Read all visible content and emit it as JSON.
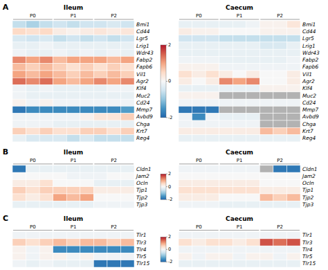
{
  "chart_data": [
    {
      "type": "heatmap",
      "title": "A",
      "rows": [
        "Bmi1",
        "Cd44",
        "Lgr5",
        "Lrig1",
        "Wdr43",
        "Fabp2",
        "Fapb6",
        "Vil1",
        "Agr2",
        "Klf4",
        "Muc2",
        "Cd24",
        "Mmp7",
        "Avbd9",
        "Chga",
        "Krt7",
        "Reg4"
      ],
      "groups": [
        "P0",
        "P1",
        "P2"
      ],
      "group_size": 3,
      "colormap": [
        "#2166ac",
        "#4393c3",
        "#92c5de",
        "#d1e5f0",
        "#f7f7f7",
        "#fddbc7",
        "#f4a582",
        "#d6604d",
        "#b2182b"
      ],
      "missing_color": "#b2b2b2",
      "colorbar": {
        "range": [
          -2,
          2
        ],
        "ticks": [
          -2,
          0,
          2
        ]
      },
      "heatmaps": [
        {
          "title": "Ileum",
          "values": [
            [
              -0.6,
              -0.8,
              -0.6,
              -0.5,
              -0.6,
              -0.5,
              -0.5,
              -0.4,
              -0.5
            ],
            [
              0.5,
              0.4,
              0.5,
              0.2,
              0.1,
              0.2,
              0.3,
              0.2,
              0.3
            ],
            [
              -0.4,
              -0.5,
              -0.4,
              -0.6,
              -0.5,
              -0.6,
              -0.5,
              -0.6,
              -0.5
            ],
            [
              -0.2,
              -0.2,
              -0.1,
              -0.2,
              -0.2,
              -0.2,
              -0.2,
              -0.2,
              -0.2
            ],
            [
              -0.1,
              -0.2,
              -0.2,
              -0.1,
              -0.2,
              -0.1,
              -0.2,
              -0.1,
              -0.2
            ],
            [
              1.2,
              1.0,
              1.2,
              0.8,
              1.0,
              1.0,
              1.0,
              0.8,
              1.0
            ],
            [
              0.8,
              0.6,
              0.8,
              0.6,
              0.4,
              0.6,
              0.4,
              0.6,
              0.4
            ],
            [
              1.0,
              0.8,
              1.0,
              0.8,
              0.6,
              0.8,
              0.6,
              0.8,
              0.6
            ],
            [
              1.4,
              1.2,
              1.4,
              1.0,
              0.8,
              1.0,
              1.2,
              1.0,
              1.2
            ],
            [
              -0.1,
              -0.2,
              -0.1,
              -0.2,
              -0.2,
              -0.2,
              -0.2,
              -0.1,
              -0.1
            ],
            [
              -0.1,
              -0.2,
              -0.2,
              -0.2,
              -0.2,
              -0.2,
              -0.2,
              -0.2,
              -0.2
            ],
            [
              0.1,
              -0.1,
              0.1,
              -0.1,
              -0.1,
              -0.1,
              -0.1,
              -0.1,
              -0.1
            ],
            [
              -1.8,
              -1.6,
              -1.6,
              -1.6,
              -1.6,
              -1.6,
              -1.6,
              -1.6,
              -1.4
            ],
            [
              -0.1,
              -0.1,
              -0.1,
              -0.1,
              -0.1,
              0.1,
              0.3,
              0.3,
              0.6
            ],
            [
              -0.1,
              -0.1,
              -0.1,
              -0.2,
              -0.2,
              -0.2,
              -0.2,
              -0.2,
              -0.2
            ],
            [
              0.6,
              0.4,
              0.6,
              0.4,
              0.4,
              0.6,
              0.6,
              0.4,
              0.6
            ],
            [
              -0.2,
              -0.4,
              -0.4,
              -0.4,
              -0.6,
              -0.4,
              -0.6,
              -0.6,
              -0.6
            ]
          ]
        },
        {
          "title": "Caecum",
          "values": [
            [
              -0.2,
              -0.2,
              -0.2,
              -0.2,
              -0.2,
              -0.1,
              0.1,
              0.1,
              0.3
            ],
            [
              0.2,
              0.1,
              0.1,
              0.0,
              0.0,
              0.0,
              0.1,
              0.1,
              0.1
            ],
            [
              -0.5,
              -0.5,
              -0.5,
              -0.6,
              -0.6,
              -0.6,
              -0.6,
              -0.6,
              -0.6
            ],
            [
              -0.2,
              -0.2,
              -0.2,
              -0.2,
              -0.2,
              -0.2,
              -0.4,
              -0.4,
              -0.2
            ],
            [
              -0.2,
              -0.2,
              -0.2,
              -0.2,
              -0.2,
              -0.2,
              -0.2,
              -0.2,
              -0.2
            ],
            [
              -0.1,
              -0.1,
              -0.1,
              -0.2,
              -0.2,
              -0.2,
              -0.2,
              -0.2,
              -0.1
            ],
            [
              0.1,
              0.1,
              0.1,
              -0.1,
              -0.1,
              -0.1,
              -0.1,
              -0.1,
              -0.1
            ],
            [
              0.4,
              0.2,
              0.4,
              0.2,
              0.0,
              0.2,
              0.0,
              0.0,
              0.2
            ],
            [
              0.2,
              0.0,
              0.2,
              1.2,
              1.0,
              1.2,
              0.0,
              0.0,
              0.2
            ],
            [
              -0.2,
              -0.2,
              -0.2,
              -0.2,
              -0.2,
              -0.2,
              0.1,
              0.1,
              0.1
            ],
            [
              0.1,
              0.1,
              0.1,
              null,
              null,
              null,
              null,
              null,
              null
            ],
            [
              -0.1,
              -0.1,
              -0.1,
              -0.1,
              -0.1,
              -0.1,
              -0.1,
              -0.1,
              -0.1
            ],
            [
              -1.8,
              -1.8,
              -1.8,
              null,
              null,
              null,
              null,
              null,
              null
            ],
            [
              -0.1,
              -1.6,
              -0.1,
              -0.2,
              -0.2,
              -0.2,
              null,
              null,
              null
            ],
            [
              -0.1,
              -0.1,
              -0.1,
              -0.1,
              -0.1,
              -0.1,
              null,
              null,
              null
            ],
            [
              0.2,
              0.2,
              0.2,
              0.2,
              0.2,
              0.2,
              0.8,
              0.6,
              0.8
            ],
            [
              -0.2,
              -0.2,
              -0.2,
              -0.2,
              -0.2,
              -0.2,
              -0.2,
              -0.2,
              -0.2
            ]
          ]
        }
      ]
    },
    {
      "type": "heatmap",
      "title": "B",
      "rows": [
        "Cldn1",
        "Jam2",
        "Ocln",
        "Tjp1",
        "Tjp2",
        "Tjp3"
      ],
      "groups": [
        "P0",
        "P1",
        "P2"
      ],
      "group_size": 3,
      "colormap": [
        "#2166ac",
        "#4393c3",
        "#92c5de",
        "#d1e5f0",
        "#f7f7f7",
        "#fddbc7",
        "#f4a582",
        "#d6604d",
        "#b2182b"
      ],
      "missing_color": "#b2b2b2",
      "colorbar": {
        "range": [
          -2,
          2
        ],
        "ticks": [
          -2,
          0,
          2
        ]
      },
      "heatmaps": [
        {
          "title": "Ileum",
          "values": [
            [
              -1.8,
              -0.2,
              -0.2,
              -0.2,
              -0.2,
              -0.2,
              -0.2,
              -0.2,
              -0.2
            ],
            [
              0.0,
              0.0,
              0.0,
              0.0,
              -0.1,
              -0.1,
              -0.1,
              0.0,
              0.0
            ],
            [
              0.2,
              0.2,
              0.4,
              0.0,
              0.0,
              0.0,
              -0.2,
              -0.2,
              -0.2
            ],
            [
              0.6,
              0.4,
              0.6,
              0.6,
              0.6,
              0.6,
              0.2,
              0.2,
              0.2
            ],
            [
              0.4,
              0.2,
              0.4,
              1.0,
              0.8,
              1.0,
              0.0,
              0.0,
              0.0
            ],
            [
              -0.2,
              -0.2,
              -0.2,
              -0.2,
              -0.2,
              -0.2,
              -0.1,
              -0.1,
              -0.1
            ]
          ]
        },
        {
          "title": "Caecum",
          "values": [
            [
              -0.1,
              -0.1,
              -0.1,
              -0.1,
              -0.1,
              -0.1,
              null,
              -1.8,
              -1.8
            ],
            [
              0.0,
              0.0,
              0.0,
              0.0,
              0.0,
              0.0,
              0.0,
              0.0,
              0.0
            ],
            [
              0.2,
              0.2,
              0.2,
              0.2,
              0.2,
              0.2,
              0.0,
              0.0,
              0.0
            ],
            [
              0.4,
              0.4,
              0.4,
              0.4,
              0.4,
              0.4,
              0.2,
              0.2,
              0.2
            ],
            [
              0.2,
              0.2,
              0.2,
              0.0,
              0.0,
              0.0,
              0.8,
              0.6,
              0.8
            ],
            [
              -0.1,
              -0.1,
              -0.1,
              -0.2,
              -0.2,
              -0.2,
              -0.2,
              -0.2,
              -0.2
            ]
          ]
        }
      ]
    },
    {
      "type": "heatmap",
      "title": "C",
      "rows": [
        "Tlr1",
        "Tlr3",
        "Tlr4",
        "Tlr5",
        "Tlr15"
      ],
      "groups": [
        "P0",
        "P1",
        "P2"
      ],
      "group_size": 3,
      "colormap": [
        "#2166ac",
        "#4393c3",
        "#92c5de",
        "#d1e5f0",
        "#f7f7f7",
        "#fddbc7",
        "#f4a582",
        "#d6604d",
        "#b2182b"
      ],
      "missing_color": "#b2b2b2",
      "colorbar": {
        "range": [
          -2,
          2
        ],
        "ticks": [
          -2,
          0,
          2
        ]
      },
      "heatmaps": [
        {
          "title": "Ileum",
          "values": [
            [
              -0.1,
              -0.1,
              -0.1,
              -0.1,
              -0.1,
              -0.1,
              -0.1,
              -0.1,
              -0.1
            ],
            [
              0.6,
              0.4,
              0.6,
              0.8,
              0.6,
              0.8,
              0.8,
              0.6,
              0.8
            ],
            [
              0.1,
              -0.1,
              0.1,
              -1.6,
              -1.6,
              -1.6,
              -1.6,
              -1.6,
              -1.6
            ],
            [
              0.1,
              -0.1,
              0.1,
              0.1,
              -0.1,
              0.1,
              -0.1,
              -0.1,
              -0.1
            ],
            [
              -0.1,
              -0.2,
              -0.1,
              -0.2,
              -0.2,
              -0.2,
              -1.8,
              -1.8,
              -1.8
            ]
          ]
        },
        {
          "title": "Caecum",
          "values": [
            [
              -0.1,
              -0.1,
              -0.1,
              -0.1,
              -0.1,
              -0.1,
              -0.1,
              -0.1,
              -0.1
            ],
            [
              0.4,
              0.2,
              0.4,
              0.4,
              0.2,
              0.4,
              1.6,
              1.4,
              1.6
            ],
            [
              -0.1,
              -0.1,
              -0.1,
              -0.1,
              -0.1,
              -0.1,
              -0.1,
              -0.1,
              -0.1
            ],
            [
              0.1,
              -0.1,
              0.1,
              0.1,
              -0.1,
              0.1,
              0.1,
              -0.1,
              0.1
            ],
            [
              -0.2,
              -0.2,
              -0.2,
              -0.2,
              -0.2,
              -0.2,
              -0.2,
              -0.2,
              -0.2
            ]
          ]
        }
      ]
    }
  ]
}
